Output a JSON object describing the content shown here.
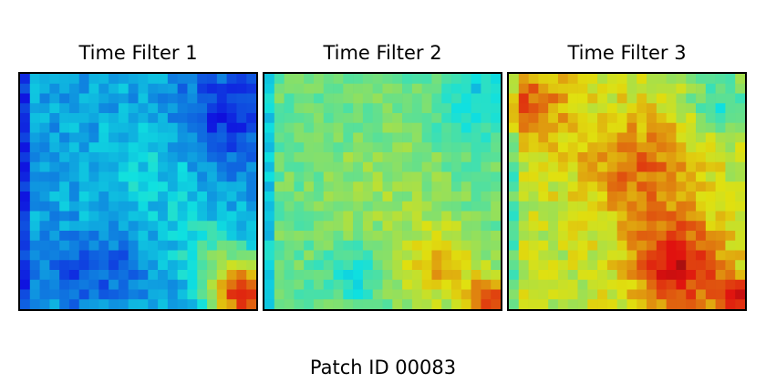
{
  "chart_data": {
    "type": "heatmap",
    "caption": "Patch ID 00083",
    "colormap": "jet",
    "grid": [
      24,
      24
    ],
    "panels": [
      {
        "title": "Time Filter 1",
        "base": 0.3,
        "noise": 0.05,
        "features": [
          {
            "cx": 0.88,
            "cy": 0.18,
            "r": 0.14,
            "d": -0.15
          },
          {
            "cx": 0.55,
            "cy": 0.45,
            "r": 0.18,
            "d": 0.06
          },
          {
            "cx": 0.4,
            "cy": 0.8,
            "r": 0.1,
            "d": -0.08
          },
          {
            "cx": 0.2,
            "cy": 0.85,
            "r": 0.1,
            "d": -0.08
          },
          {
            "cx": 0.8,
            "cy": 0.75,
            "r": 0.1,
            "d": 0.12
          },
          {
            "cx": 0.95,
            "cy": 0.93,
            "r": 0.1,
            "d": 0.55
          }
        ]
      },
      {
        "title": "Time Filter 2",
        "base": 0.48,
        "noise": 0.05,
        "features": [
          {
            "cx": 0.9,
            "cy": 0.12,
            "r": 0.12,
            "d": -0.12
          },
          {
            "cx": 0.5,
            "cy": 0.5,
            "r": 0.2,
            "d": 0.06
          },
          {
            "cx": 0.38,
            "cy": 0.85,
            "r": 0.08,
            "d": -0.12
          },
          {
            "cx": 0.75,
            "cy": 0.82,
            "r": 0.12,
            "d": 0.2
          },
          {
            "cx": 0.95,
            "cy": 0.96,
            "r": 0.06,
            "d": 0.35
          }
        ]
      },
      {
        "title": "Time Filter 3",
        "base": 0.58,
        "noise": 0.06,
        "features": [
          {
            "cx": 0.08,
            "cy": 0.12,
            "r": 0.12,
            "d": 0.2
          },
          {
            "cx": 0.55,
            "cy": 0.4,
            "r": 0.18,
            "d": 0.18
          },
          {
            "cx": 0.9,
            "cy": 0.12,
            "r": 0.1,
            "d": -0.18
          },
          {
            "cx": 0.72,
            "cy": 0.82,
            "r": 0.14,
            "d": 0.3
          },
          {
            "cx": 0.97,
            "cy": 0.95,
            "r": 0.06,
            "d": 0.25
          }
        ]
      }
    ]
  }
}
